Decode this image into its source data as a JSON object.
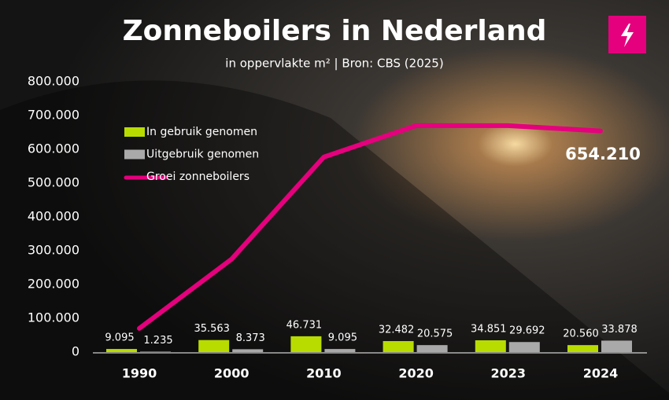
{
  "chart_data": {
    "type": "bar_line",
    "title": "Zonneboilers in Nederland",
    "subtitle": "in oppervlakte m² | Bron: CBS (2025)",
    "categories": [
      "1990",
      "2000",
      "2010",
      "2020",
      "2023",
      "2024"
    ],
    "ylim": [
      0,
      800000
    ],
    "yticks": [
      0,
      {
        "value": 100000,
        "label": "100.000"
      },
      {
        "value": 200000,
        "label": "200.000"
      },
      {
        "value": 300000,
        "label": "300.000"
      },
      {
        "value": 400000,
        "label": "400.000"
      },
      {
        "value": 500000,
        "label": "500.000"
      },
      {
        "value": 600000,
        "label": "600.000"
      },
      {
        "value": 700000,
        "label": "700.000"
      },
      {
        "value": 800000,
        "label": "800.000"
      }
    ],
    "series": [
      {
        "name": "In gebruik genomen",
        "type": "bar",
        "color": "#b8dc00",
        "values": [
          9095,
          35563,
          46731,
          32482,
          34851,
          20560
        ],
        "value_labels": [
          "9.095",
          "35.563",
          "46.731",
          "32.482",
          "34.851",
          "20.560"
        ]
      },
      {
        "name": "Uitgebruik genomen",
        "type": "bar",
        "color": "#a9a9a9",
        "values": [
          1235,
          8373,
          9095,
          20575,
          29692,
          33878
        ],
        "value_labels": [
          "1.235",
          "8.373",
          "9.095",
          "20.575",
          "29.692",
          "33.878"
        ]
      },
      {
        "name": "Groei zonneboilers",
        "type": "line",
        "color": "#e5007d",
        "values": [
          70000,
          275000,
          577000,
          670000,
          670000,
          654210
        ],
        "value_labels": [
          null,
          null,
          null,
          null,
          null,
          "654.210"
        ]
      }
    ]
  }
}
